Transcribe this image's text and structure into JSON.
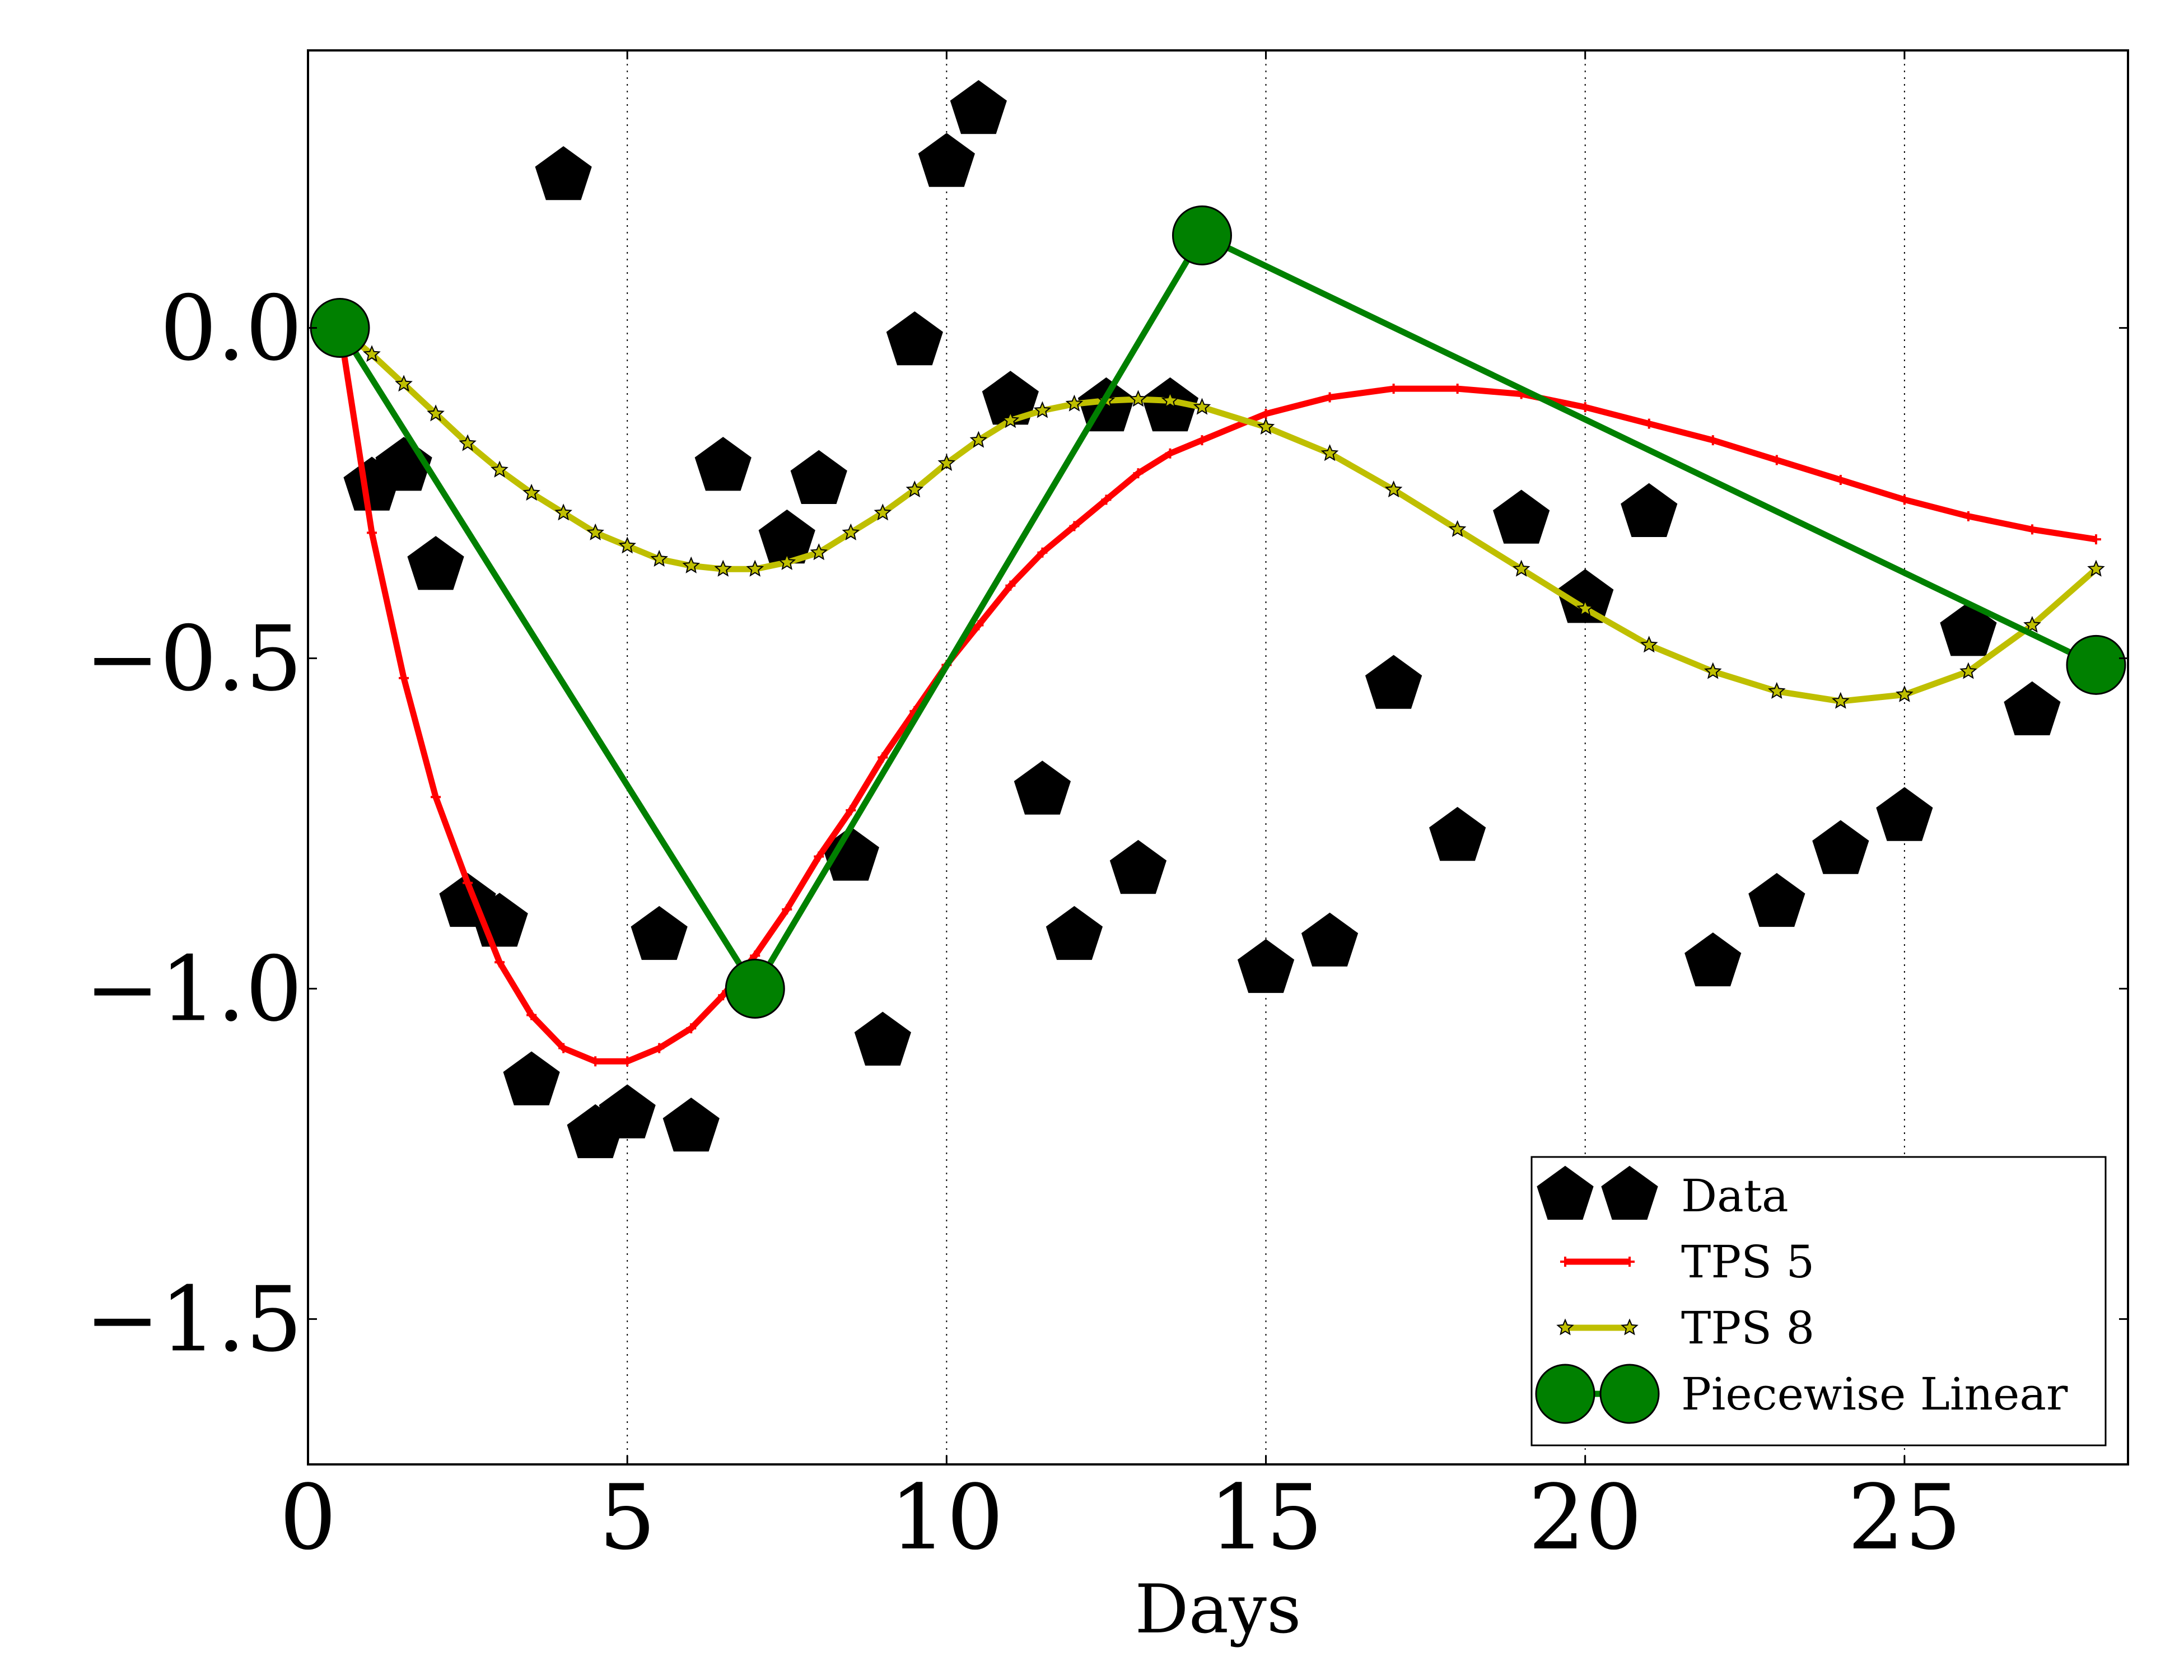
{
  "chart_data": {
    "type": "scatter",
    "title": "",
    "xlabel": "Days",
    "ylabel": "",
    "xlim": [
      0,
      28.5
    ],
    "ylim": [
      -1.72,
      0.42
    ],
    "xticks": [
      0,
      5,
      10,
      15,
      20,
      25
    ],
    "xtick_labels": [
      "0",
      "5",
      "10",
      "15",
      "20",
      "25"
    ],
    "yticks": [
      0.0,
      -0.5,
      -1.0,
      -1.5
    ],
    "ytick_labels": [
      "0.0",
      "−0.5",
      "−1.0",
      "−1.5"
    ],
    "grid": "vertical dotted at x ticks",
    "legend_placement": "lower-right",
    "series": [
      {
        "name": "Data",
        "style": "scatter",
        "marker": "pentagon",
        "color": "#000000",
        "points": [
          [
            1.0,
            -0.24
          ],
          [
            1.5,
            -0.21
          ],
          [
            2.0,
            -0.36
          ],
          [
            2.5,
            -0.87
          ],
          [
            3.0,
            -0.9
          ],
          [
            3.5,
            -1.14
          ],
          [
            4.0,
            0.23
          ],
          [
            4.5,
            -1.22
          ],
          [
            5.0,
            -1.19
          ],
          [
            5.5,
            -0.92
          ],
          [
            6.0,
            -1.21
          ],
          [
            6.5,
            -0.21
          ],
          [
            7.5,
            -0.32
          ],
          [
            8.0,
            -0.23
          ],
          [
            8.5,
            -0.8
          ],
          [
            9.0,
            -1.08
          ],
          [
            9.5,
            -0.02
          ],
          [
            10.0,
            0.25
          ],
          [
            10.5,
            0.33
          ],
          [
            11.0,
            -0.11
          ],
          [
            11.5,
            -0.7
          ],
          [
            12.0,
            -0.92
          ],
          [
            12.5,
            -0.12
          ],
          [
            13.0,
            -0.82
          ],
          [
            13.5,
            -0.12
          ],
          [
            15.0,
            -0.97
          ],
          [
            16.0,
            -0.93
          ],
          [
            17.0,
            -0.54
          ],
          [
            18.0,
            -0.77
          ],
          [
            19.0,
            -0.29
          ],
          [
            20.0,
            -0.41
          ],
          [
            21.0,
            -0.28
          ],
          [
            22.0,
            -0.96
          ],
          [
            23.0,
            -0.87
          ],
          [
            24.0,
            -0.79
          ],
          [
            25.0,
            -0.74
          ],
          [
            26.0,
            -0.46
          ],
          [
            27.0,
            -0.58
          ]
        ]
      },
      {
        "name": "TPS 5",
        "style": "line",
        "marker": "plus",
        "color": "#ff0000",
        "points": [
          [
            0.5,
            0.0
          ],
          [
            1.0,
            -0.31
          ],
          [
            1.5,
            -0.53
          ],
          [
            2.0,
            -0.71
          ],
          [
            2.5,
            -0.84
          ],
          [
            3.0,
            -0.96
          ],
          [
            3.5,
            -1.04
          ],
          [
            4.0,
            -1.09
          ],
          [
            4.5,
            -1.11
          ],
          [
            5.0,
            -1.11
          ],
          [
            5.5,
            -1.09
          ],
          [
            6.0,
            -1.06
          ],
          [
            6.5,
            -1.01
          ],
          [
            7.0,
            -0.95
          ],
          [
            7.5,
            -0.88
          ],
          [
            8.0,
            -0.8
          ],
          [
            8.5,
            -0.73
          ],
          [
            9.0,
            -0.65
          ],
          [
            9.5,
            -0.58
          ],
          [
            10.0,
            -0.51
          ],
          [
            10.5,
            -0.45
          ],
          [
            11.0,
            -0.39
          ],
          [
            11.5,
            -0.34
          ],
          [
            12.0,
            -0.3
          ],
          [
            12.5,
            -0.26
          ],
          [
            13.0,
            -0.22
          ],
          [
            13.5,
            -0.19
          ],
          [
            14.0,
            -0.17
          ],
          [
            15.0,
            -0.13
          ],
          [
            16.0,
            -0.105
          ],
          [
            17.0,
            -0.092
          ],
          [
            18.0,
            -0.092
          ],
          [
            19.0,
            -0.1
          ],
          [
            20.0,
            -0.12
          ],
          [
            21.0,
            -0.145
          ],
          [
            22.0,
            -0.17
          ],
          [
            23.0,
            -0.2
          ],
          [
            24.0,
            -0.23
          ],
          [
            25.0,
            -0.26
          ],
          [
            26.0,
            -0.285
          ],
          [
            27.0,
            -0.305
          ],
          [
            28.0,
            -0.32
          ]
        ]
      },
      {
        "name": "TPS 8",
        "style": "line",
        "marker": "star",
        "color": "#bfbf00",
        "points": [
          [
            0.5,
            0.0
          ],
          [
            1.0,
            -0.04
          ],
          [
            1.5,
            -0.085
          ],
          [
            2.0,
            -0.13
          ],
          [
            2.5,
            -0.175
          ],
          [
            3.0,
            -0.215
          ],
          [
            3.5,
            -0.25
          ],
          [
            4.0,
            -0.28
          ],
          [
            4.5,
            -0.31
          ],
          [
            5.0,
            -0.33
          ],
          [
            5.5,
            -0.35
          ],
          [
            6.0,
            -0.36
          ],
          [
            6.5,
            -0.365
          ],
          [
            7.0,
            -0.365
          ],
          [
            7.5,
            -0.355
          ],
          [
            8.0,
            -0.34
          ],
          [
            8.5,
            -0.31
          ],
          [
            9.0,
            -0.28
          ],
          [
            9.5,
            -0.245
          ],
          [
            10.0,
            -0.205
          ],
          [
            10.5,
            -0.17
          ],
          [
            11.0,
            -0.14
          ],
          [
            11.5,
            -0.125
          ],
          [
            12.0,
            -0.115
          ],
          [
            12.5,
            -0.11
          ],
          [
            13.0,
            -0.108
          ],
          [
            13.5,
            -0.11
          ],
          [
            14.0,
            -0.12
          ],
          [
            15.0,
            -0.15
          ],
          [
            16.0,
            -0.19
          ],
          [
            17.0,
            -0.245
          ],
          [
            18.0,
            -0.305
          ],
          [
            19.0,
            -0.365
          ],
          [
            20.0,
            -0.425
          ],
          [
            21.0,
            -0.48
          ],
          [
            22.0,
            -0.52
          ],
          [
            23.0,
            -0.55
          ],
          [
            24.0,
            -0.565
          ],
          [
            25.0,
            -0.555
          ],
          [
            26.0,
            -0.52
          ],
          [
            27.0,
            -0.45
          ],
          [
            28.0,
            -0.365
          ]
        ]
      },
      {
        "name": "Piecewise Linear",
        "style": "line",
        "marker": "circle",
        "color": "#008000",
        "points": [
          [
            0.5,
            0.0
          ],
          [
            7.0,
            -1.0
          ],
          [
            14.0,
            0.14
          ],
          [
            28.0,
            -0.51
          ]
        ]
      }
    ]
  }
}
